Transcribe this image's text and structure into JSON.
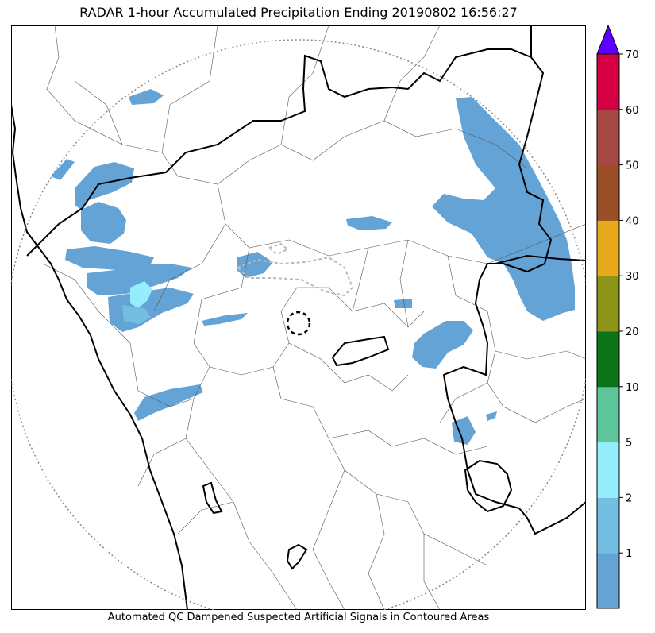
{
  "title": "RADAR 1-hour Accumulated Precipitation Ending 20190802 16:56:27",
  "footer_note": "Automated QC Dampened Suspected Artificial Signals in Contoured Areas",
  "colorbar": {
    "tick_labels": [
      "1",
      "2",
      "5",
      "10",
      "20",
      "30",
      "40",
      "50",
      "60",
      "70"
    ],
    "bins": [
      {
        "color": "#64a3d6"
      },
      {
        "color": "#74bde3"
      },
      {
        "color": "#96eefc"
      },
      {
        "color": "#5dc59a"
      },
      {
        "color": "#0c7318"
      },
      {
        "color": "#8c9418"
      },
      {
        "color": "#e8aa1c"
      },
      {
        "color": "#9a4f26"
      },
      {
        "color": "#a64843"
      },
      {
        "color": "#d50043"
      }
    ],
    "extend_color": "#5c00ff"
  },
  "legend_colors": {
    "rain_light": "#64a3d6",
    "rain_moderate": "#74bde3",
    "rain_heavy": "#96eefc",
    "state_border": "#000000",
    "district_border": "#555555",
    "radar_range": "#888888",
    "qc_contour": "#bbbbbb"
  }
}
